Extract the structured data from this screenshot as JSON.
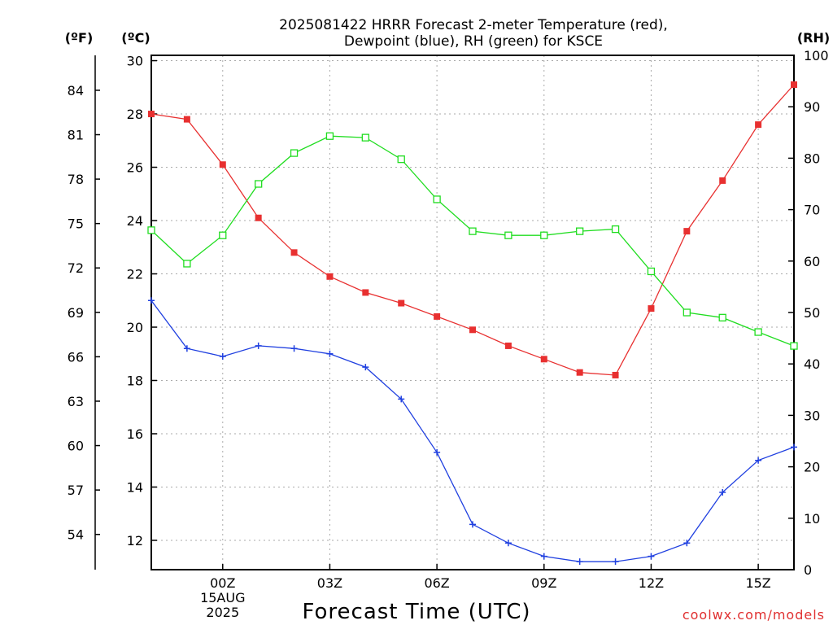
{
  "chart_data": {
    "type": "line",
    "title": [
      "2025081422 HRRR Forecast 2-meter Temperature (red),",
      "Dewpoint (blue), RH (green) for KSCE"
    ],
    "xlabel": "Forecast Time (UTC)",
    "units": {
      "fahrenheit": "(ºF)",
      "celsius": "(ºC)",
      "rh": "(RH)"
    },
    "x_hours": [
      -2,
      -1,
      0,
      1,
      2,
      3,
      4,
      5,
      6,
      7,
      8,
      9,
      10,
      11,
      12,
      13,
      14,
      15,
      16
    ],
    "x_range": [
      -2,
      16
    ],
    "x_ticks": [
      {
        "hour": 0,
        "lines": [
          "00Z",
          "15AUG",
          "2025"
        ]
      },
      {
        "hour": 3,
        "lines": [
          "03Z"
        ]
      },
      {
        "hour": 6,
        "lines": [
          "06Z"
        ]
      },
      {
        "hour": 9,
        "lines": [
          "09Z"
        ]
      },
      {
        "hour": 12,
        "lines": [
          "12Z"
        ]
      },
      {
        "hour": 15,
        "lines": [
          "15Z"
        ]
      }
    ],
    "celsius_axis": {
      "range": [
        10.9,
        30.2
      ],
      "ticks": [
        12,
        14,
        16,
        18,
        20,
        22,
        24,
        26,
        28,
        30
      ]
    },
    "fahrenheit_ticks": [
      54,
      57,
      60,
      63,
      66,
      69,
      72,
      75,
      78,
      81,
      84
    ],
    "rh_axis": {
      "range": [
        0,
        100
      ],
      "ticks": [
        0,
        10,
        20,
        30,
        40,
        50,
        60,
        70,
        80,
        90,
        100
      ]
    },
    "grid": true,
    "series": [
      {
        "name": "Temperature",
        "axis": "celsius",
        "color": "#e83030",
        "marker": "filled-square",
        "values": [
          28.0,
          27.8,
          26.1,
          24.1,
          22.8,
          21.9,
          21.3,
          20.9,
          20.4,
          19.9,
          19.3,
          18.8,
          18.3,
          18.2,
          20.7,
          23.6,
          25.5,
          27.6,
          29.1
        ]
      },
      {
        "name": "Dewpoint",
        "axis": "celsius",
        "color": "#2040e0",
        "marker": "plus",
        "values": [
          21.0,
          19.2,
          18.9,
          19.3,
          19.2,
          19.0,
          18.5,
          17.3,
          15.3,
          12.6,
          11.9,
          11.4,
          11.2,
          11.2,
          11.4,
          11.9,
          13.8,
          15.0,
          15.5
        ]
      },
      {
        "name": "RH",
        "axis": "rh",
        "color": "#20dd20",
        "marker": "open-square",
        "values": [
          66.0,
          59.5,
          65.0,
          75.0,
          81.0,
          84.3,
          84.0,
          79.8,
          72.0,
          65.8,
          65.0,
          65.0,
          65.8,
          66.2,
          58.0,
          50.0,
          49.0,
          46.2,
          43.5
        ]
      }
    ]
  },
  "credit": "coolwx.com/models"
}
